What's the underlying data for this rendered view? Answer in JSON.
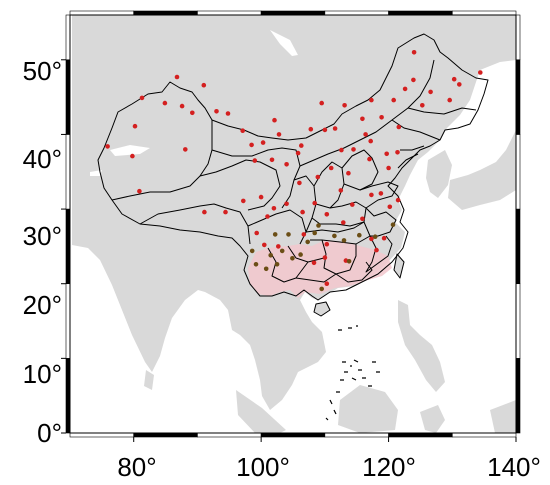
{
  "map": {
    "lon_range": [
      70,
      140
    ],
    "lat_range": [
      0,
      56
    ],
    "x_ticks": [
      "80°",
      "100°",
      "120°",
      "140°"
    ],
    "y_ticks": [
      "0°",
      "10°",
      "20°",
      "30°",
      "40°",
      "50°"
    ],
    "frame_style": "alternating black/white fancy border",
    "colors": {
      "land": "#d9d9d9",
      "ocean": "#ffffff",
      "borders": "#000000",
      "station_red": "#d42020",
      "station_brown": "#6b4e16",
      "highlight_region": "#f2c7cc"
    },
    "highlighted_region": "Yunnan–Guizhou region (pink shading)"
  },
  "chart_data": {
    "type": "scatter",
    "title": "",
    "xlabel": "",
    "ylabel": "",
    "xlim": [
      70,
      140
    ],
    "ylim": [
      0,
      56
    ],
    "series": [
      {
        "color": "#d42020",
        "points": [
          [
            75.9,
            38.4
          ],
          [
            80.2,
            41.1
          ],
          [
            79.8,
            37.1
          ],
          [
            80.9,
            32.4
          ],
          [
            81.3,
            44.9
          ],
          [
            84.9,
            44.2
          ],
          [
            86.8,
            47.7
          ],
          [
            87.6,
            43.8
          ],
          [
            88.1,
            38.0
          ],
          [
            89.2,
            42.9
          ],
          [
            91.0,
            46.6
          ],
          [
            93.0,
            43.1
          ],
          [
            94.8,
            42.8
          ],
          [
            97.1,
            40.5
          ],
          [
            98.5,
            38.6
          ],
          [
            99.0,
            36.5
          ],
          [
            100.3,
            38.9
          ],
          [
            102.8,
            40.0
          ],
          [
            101.7,
            36.6
          ],
          [
            104.0,
            36.0
          ],
          [
            105.8,
            37.5
          ],
          [
            106.3,
            38.5
          ],
          [
            102.1,
            41.9
          ],
          [
            107.8,
            40.7
          ],
          [
            111.6,
            40.8
          ],
          [
            110.0,
            40.6
          ],
          [
            109.5,
            44.2
          ],
          [
            113.1,
            43.9
          ],
          [
            115.9,
            42.1
          ],
          [
            117.3,
            44.6
          ],
          [
            120.8,
            44.6
          ],
          [
            122.6,
            46.1
          ],
          [
            123.9,
            47.3
          ],
          [
            124.0,
            51.0
          ],
          [
            126.6,
            45.7
          ],
          [
            130.3,
            47.4
          ],
          [
            129.6,
            44.6
          ],
          [
            134.4,
            48.3
          ],
          [
            131.1,
            46.7
          ],
          [
            125.3,
            43.9
          ],
          [
            121.6,
            41.0
          ],
          [
            118.9,
            42.3
          ],
          [
            117.2,
            39.1
          ],
          [
            116.4,
            40.0
          ],
          [
            114.5,
            38.0
          ],
          [
            112.6,
            37.9
          ],
          [
            111.0,
            35.5
          ],
          [
            108.9,
            34.3
          ],
          [
            106.0,
            33.5
          ],
          [
            104.0,
            30.7
          ],
          [
            102.0,
            30.1
          ],
          [
            100.0,
            31.6
          ],
          [
            97.2,
            31.1
          ],
          [
            91.1,
            29.6
          ],
          [
            94.4,
            29.6
          ],
          [
            99.3,
            26.8
          ],
          [
            101.0,
            29.0
          ],
          [
            106.5,
            29.6
          ],
          [
            108.4,
            30.8
          ],
          [
            110.3,
            29.3
          ],
          [
            112.9,
            28.2
          ],
          [
            114.3,
            30.6
          ],
          [
            117.3,
            31.9
          ],
          [
            118.8,
            32.1
          ],
          [
            120.2,
            30.3
          ],
          [
            121.5,
            31.2
          ],
          [
            120.0,
            35.5
          ],
          [
            117.0,
            36.7
          ],
          [
            119.7,
            37.4
          ],
          [
            121.4,
            37.6
          ],
          [
            113.7,
            34.8
          ],
          [
            112.5,
            32.5
          ],
          [
            115.9,
            28.7
          ],
          [
            117.3,
            26.0
          ],
          [
            119.3,
            26.1
          ],
          [
            118.1,
            24.5
          ],
          [
            113.3,
            23.1
          ],
          [
            110.3,
            25.3
          ],
          [
            108.3,
            22.8
          ],
          [
            110.3,
            20.0
          ],
          [
            106.7,
            26.6
          ],
          [
            102.7,
            25.0
          ],
          [
            100.5,
            25.2
          ],
          [
            110.0,
            23.5
          ]
        ]
      },
      {
        "color": "#6b4e16",
        "points": [
          [
            98.6,
            24.4
          ],
          [
            99.2,
            22.6
          ],
          [
            100.8,
            22.0
          ],
          [
            101.5,
            23.8
          ],
          [
            102.5,
            22.6
          ],
          [
            102.2,
            26.6
          ],
          [
            103.3,
            24.4
          ],
          [
            104.3,
            26.6
          ],
          [
            104.9,
            23.4
          ],
          [
            106.2,
            23.9
          ],
          [
            107.3,
            25.6
          ],
          [
            108.4,
            26.8
          ],
          [
            109.0,
            27.8
          ],
          [
            111.5,
            26.4
          ],
          [
            113.0,
            25.8
          ],
          [
            115.4,
            26.5
          ],
          [
            117.9,
            26.3
          ],
          [
            120.7,
            27.9
          ],
          [
            113.8,
            23.0
          ],
          [
            109.5,
            19.3
          ]
        ]
      }
    ]
  }
}
